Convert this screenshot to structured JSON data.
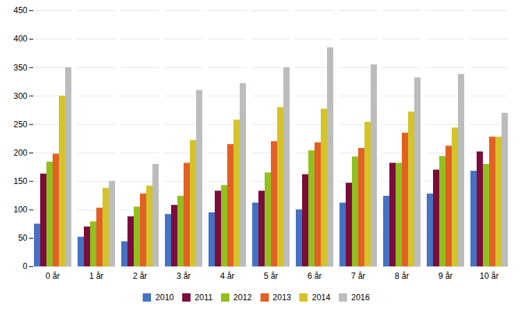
{
  "chart_data": {
    "type": "bar",
    "categories": [
      "0 år",
      "1 år",
      "2 år",
      "3 år",
      "4 år",
      "5 år",
      "6 år",
      "7 år",
      "8 år",
      "9 år",
      "10 år"
    ],
    "series": [
      {
        "name": "2010",
        "color": "#4472C4",
        "values": [
          75,
          52,
          44,
          92,
          95,
          112,
          100,
          112,
          124,
          128,
          168
        ]
      },
      {
        "name": "2011",
        "color": "#7B0D3C",
        "values": [
          163,
          70,
          88,
          108,
          133,
          133,
          162,
          147,
          182,
          170,
          202
        ]
      },
      {
        "name": "2012",
        "color": "#92C01F",
        "values": [
          184,
          79,
          105,
          124,
          143,
          165,
          204,
          193,
          182,
          194,
          180
        ]
      },
      {
        "name": "2013",
        "color": "#E36024",
        "values": [
          198,
          103,
          128,
          182,
          215,
          220,
          218,
          208,
          235,
          212,
          228
        ]
      },
      {
        "name": "2014",
        "color": "#D4C429",
        "values": [
          300,
          138,
          142,
          222,
          258,
          280,
          277,
          254,
          272,
          244,
          228
        ]
      },
      {
        "name": "2016",
        "color": "#BBBCBC",
        "values": [
          350,
          150,
          180,
          310,
          322,
          350,
          385,
          355,
          332,
          338,
          270
        ]
      }
    ],
    "ylim": [
      0,
      450
    ],
    "yticks": [
      0,
      50,
      100,
      150,
      200,
      250,
      300,
      350,
      400,
      450
    ],
    "grid": true,
    "legend": "bottom"
  }
}
